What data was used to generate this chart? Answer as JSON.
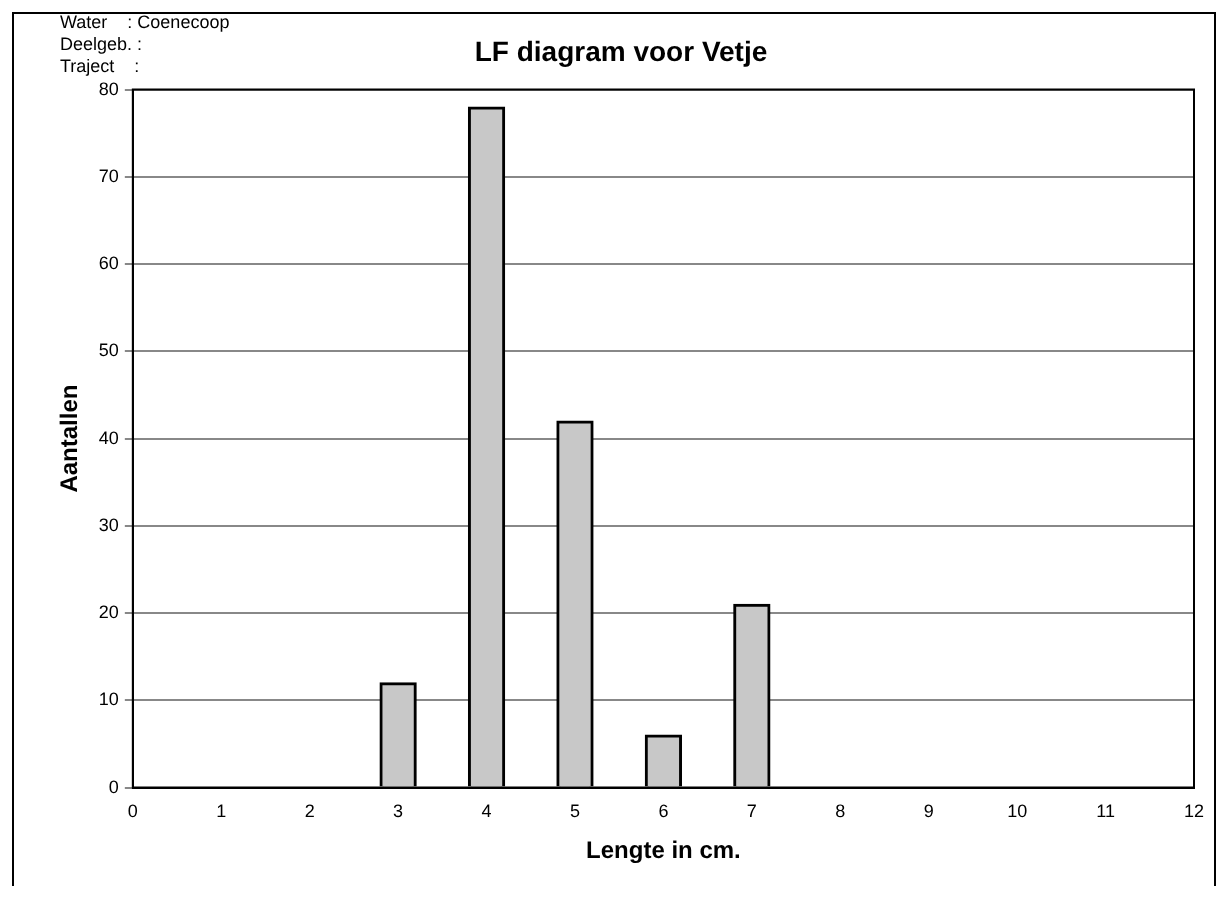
{
  "chart_data": {
    "type": "bar",
    "title": "LF diagram voor Vetje",
    "xlabel": "Lengte in cm.",
    "ylabel": "Aantallen",
    "annotations": [
      "Water    : Coenecoop",
      "Deelgeb. :",
      "Traject    :"
    ],
    "x": [
      3,
      4,
      5,
      6,
      7
    ],
    "values": [
      12,
      78,
      42,
      6,
      21
    ],
    "color": "#c8c8c8",
    "xlim": [
      0,
      12
    ],
    "xticks": [
      0,
      1,
      2,
      3,
      4,
      5,
      6,
      7,
      8,
      9,
      10,
      11,
      12
    ],
    "ylim": [
      0,
      80
    ],
    "yticks": [
      0,
      10,
      20,
      30,
      40,
      50,
      60,
      70,
      80
    ],
    "grid": "y",
    "legend": false
  }
}
